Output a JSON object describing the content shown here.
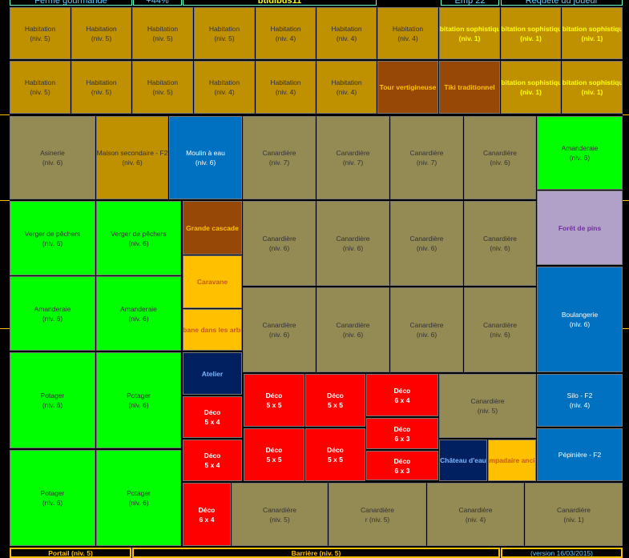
{
  "header": [
    "Ferme gourmande",
    "+44%",
    "btidibus11",
    "Emp 22",
    "Requête du joueur"
  ],
  "tiles": [
    {
      "name": "Habitation",
      "level": "(niv. 5)"
    },
    {
      "name": "Habitation",
      "level": "(niv. 5)"
    },
    {
      "name": "Habitation",
      "level": "(niv. 5)"
    },
    {
      "name": "Habitation",
      "level": "(niv. 5)"
    },
    {
      "name": "Habitation",
      "level": "(niv. 4)"
    },
    {
      "name": "Habitation",
      "level": "(niv. 4)"
    },
    {
      "name": "Habitation",
      "level": "(niv. 4)"
    },
    {
      "name": "Habitation sophistiquée",
      "level": "(niv. 1)"
    },
    {
      "name": "Habitation sophistiquée",
      "level": "(niv. 1)"
    },
    {
      "name": "Habitation sophistiquée",
      "level": "(niv. 1)"
    },
    {
      "name": "Habitation",
      "level": "(niv. 5)"
    },
    {
      "name": "Habitation",
      "level": "(niv. 5)"
    },
    {
      "name": "Habitation",
      "level": "(niv. 5)"
    },
    {
      "name": "Habitation",
      "level": "(niv. 4)"
    },
    {
      "name": "Habitation",
      "level": "(niv. 4)"
    },
    {
      "name": "Habitation",
      "level": "(niv. 4)"
    },
    {
      "name": "Tour vertigineuse"
    },
    {
      "name": "Tiki traditionnel"
    },
    {
      "name": "Habitation sophistiquée",
      "level": "(niv. 1)"
    },
    {
      "name": "Habitation sophistiquée",
      "level": "(niv. 1)"
    },
    {
      "name": "Asinerie",
      "level": "(niv. 6)"
    },
    {
      "name": "Maison secondaire - F2",
      "level": "(niv. 6)"
    },
    {
      "name": "Moulin à eau",
      "level": "(niv. 6)"
    },
    {
      "name": "Canardière",
      "level": "(niv. 7)"
    },
    {
      "name": "Canardière",
      "level": "(niv. 7)"
    },
    {
      "name": "Canardière",
      "level": "(niv. 7)"
    },
    {
      "name": "Canardière",
      "level": "(niv. 6)"
    },
    {
      "name": "Amanderaie",
      "level": "(niv. 6)"
    },
    {
      "name": "Forêt de pins"
    },
    {
      "name": "Boulangerie",
      "level": "(niv. 6)"
    },
    {
      "name": "Silo - F2",
      "level": "(niv. 4)"
    },
    {
      "name": "Pépinière - F2"
    },
    {
      "name": "Verger de pêchers",
      "level": "(niv. 6)"
    },
    {
      "name": "Verger de pêchers",
      "level": "(niv. 6)"
    },
    {
      "name": "Amanderaie",
      "level": "(niv. 6)"
    },
    {
      "name": "Amanderaie",
      "level": "(niv. 6)"
    },
    {
      "name": "Potager",
      "level": "(niv. 6)"
    },
    {
      "name": "Potager",
      "level": "(niv. 6)"
    },
    {
      "name": "Potager",
      "level": "(niv. 6)"
    },
    {
      "name": "Potager",
      "level": "(niv. 6)"
    },
    {
      "name": "Grande cascade"
    },
    {
      "name": "Caravane"
    },
    {
      "name": "Cabane dans les arbres"
    },
    {
      "name": "Atelier"
    },
    {
      "name": "Déco",
      "level": "5 x 4"
    },
    {
      "name": "Déco",
      "level": "5 x 4"
    },
    {
      "name": "Déco",
      "level": "6 x 4"
    },
    {
      "name": "Canardière",
      "level": "(niv. 6)"
    },
    {
      "name": "Canardière",
      "level": "(niv. 6)"
    },
    {
      "name": "Canardière",
      "level": "(niv. 6)"
    },
    {
      "name": "Canardière",
      "level": "(niv. 6)"
    },
    {
      "name": "Canardière",
      "level": "(niv. 6)"
    },
    {
      "name": "Canardière",
      "level": "(niv. 6)"
    },
    {
      "name": "Canardière",
      "level": "(niv. 6)"
    },
    {
      "name": "Canardière",
      "level": "(niv. 6)"
    },
    {
      "name": "Déco",
      "level": "5 x 5"
    },
    {
      "name": "Déco",
      "level": "5 x 5"
    },
    {
      "name": "Déco",
      "level": "6 x 4"
    },
    {
      "name": "Déco",
      "level": "5 x 5"
    },
    {
      "name": "Déco",
      "level": "5 x 5"
    },
    {
      "name": "Déco",
      "level": "6 x 3"
    },
    {
      "name": "Déco",
      "level": "6 x 3"
    },
    {
      "name": "Canardière",
      "level": "(niv. 5)"
    },
    {
      "name": "Château d'eau"
    },
    {
      "name": "Lampadaire ancien"
    },
    {
      "name": "Canardière",
      "level": "(niv. 5)"
    },
    {
      "name": "Canardière",
      "level": "r (niv. 5)"
    },
    {
      "name": "Canardière",
      "level": "(niv. 4)"
    },
    {
      "name": "Canardière",
      "level": "(niv. 1)"
    }
  ],
  "footer": [
    "Portail (niv. 5)",
    "Barrière (niv. 5)",
    "(version 16/03/2015)"
  ]
}
